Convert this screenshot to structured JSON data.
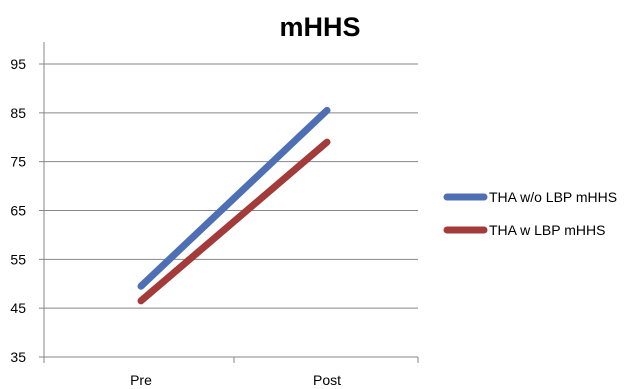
{
  "chart_data": {
    "type": "line",
    "title": "mHHS",
    "xlabel": "",
    "ylabel": "",
    "categories": [
      "Pre",
      "Post"
    ],
    "ylim": [
      35,
      95
    ],
    "yticks": [
      35,
      45,
      55,
      65,
      75,
      85,
      95
    ],
    "grid": "horizontal",
    "legend_position": "right",
    "series": [
      {
        "name": "THA w/o LBP mHHS",
        "values": [
          49.5,
          85.5
        ],
        "color": "#4f6fb5"
      },
      {
        "name": "THA w LBP mHHS",
        "values": [
          46.5,
          79
        ],
        "color": "#a33b3a"
      }
    ]
  }
}
